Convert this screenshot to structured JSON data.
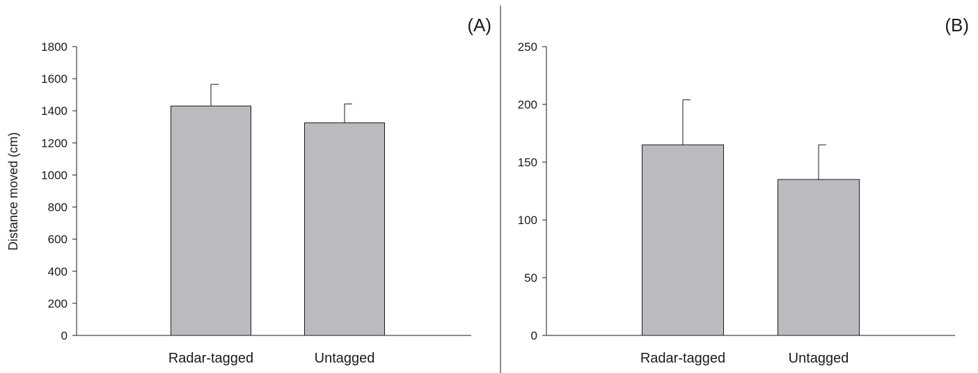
{
  "chart_data": [
    {
      "type": "bar",
      "panel_label": "(A)",
      "ylabel": "Distance moved (cm)",
      "xlabel": "",
      "ylim": [
        0,
        1800
      ],
      "yticks": [
        0,
        200,
        400,
        600,
        800,
        1000,
        1200,
        1400,
        1600,
        1800
      ],
      "categories": [
        "Radar-tagged",
        "Untagged"
      ],
      "values": [
        1430,
        1325
      ],
      "errors": [
        135,
        118
      ],
      "bar_color": "#bbbbbf",
      "grid": false
    },
    {
      "type": "bar",
      "panel_label": "(B)",
      "ylabel": "",
      "xlabel": "",
      "ylim": [
        0,
        250
      ],
      "yticks": [
        0,
        50,
        100,
        150,
        200,
        250
      ],
      "categories": [
        "Radar-tagged",
        "Untagged"
      ],
      "values": [
        165,
        135
      ],
      "errors": [
        39,
        30
      ],
      "bar_color": "#bbbbbf",
      "grid": false
    }
  ]
}
